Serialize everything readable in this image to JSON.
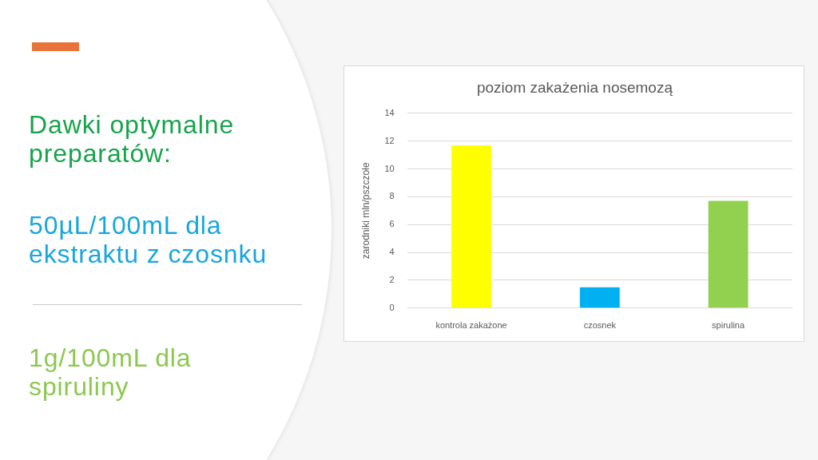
{
  "chart_data": {
    "type": "bar",
    "title": "poziom zakażenia nosemozą",
    "ylabel": "zarodniki mln/pszczołe",
    "categories": [
      "kontrola zakażone",
      "czosnek",
      "spirulina"
    ],
    "values": [
      11.7,
      1.5,
      7.7
    ],
    "colors": [
      "#ffff00",
      "#00b0f0",
      "#92d050"
    ],
    "ylim": [
      0,
      14
    ],
    "yticks": [
      0,
      2,
      4,
      6,
      8,
      10,
      12,
      14
    ],
    "grid": "y",
    "annotations": [
      "Dawki optymalne preparatów:",
      "50µL/100mL dla ekstraktu z czosnku",
      "1g/100mL dla spiruliny"
    ]
  }
}
